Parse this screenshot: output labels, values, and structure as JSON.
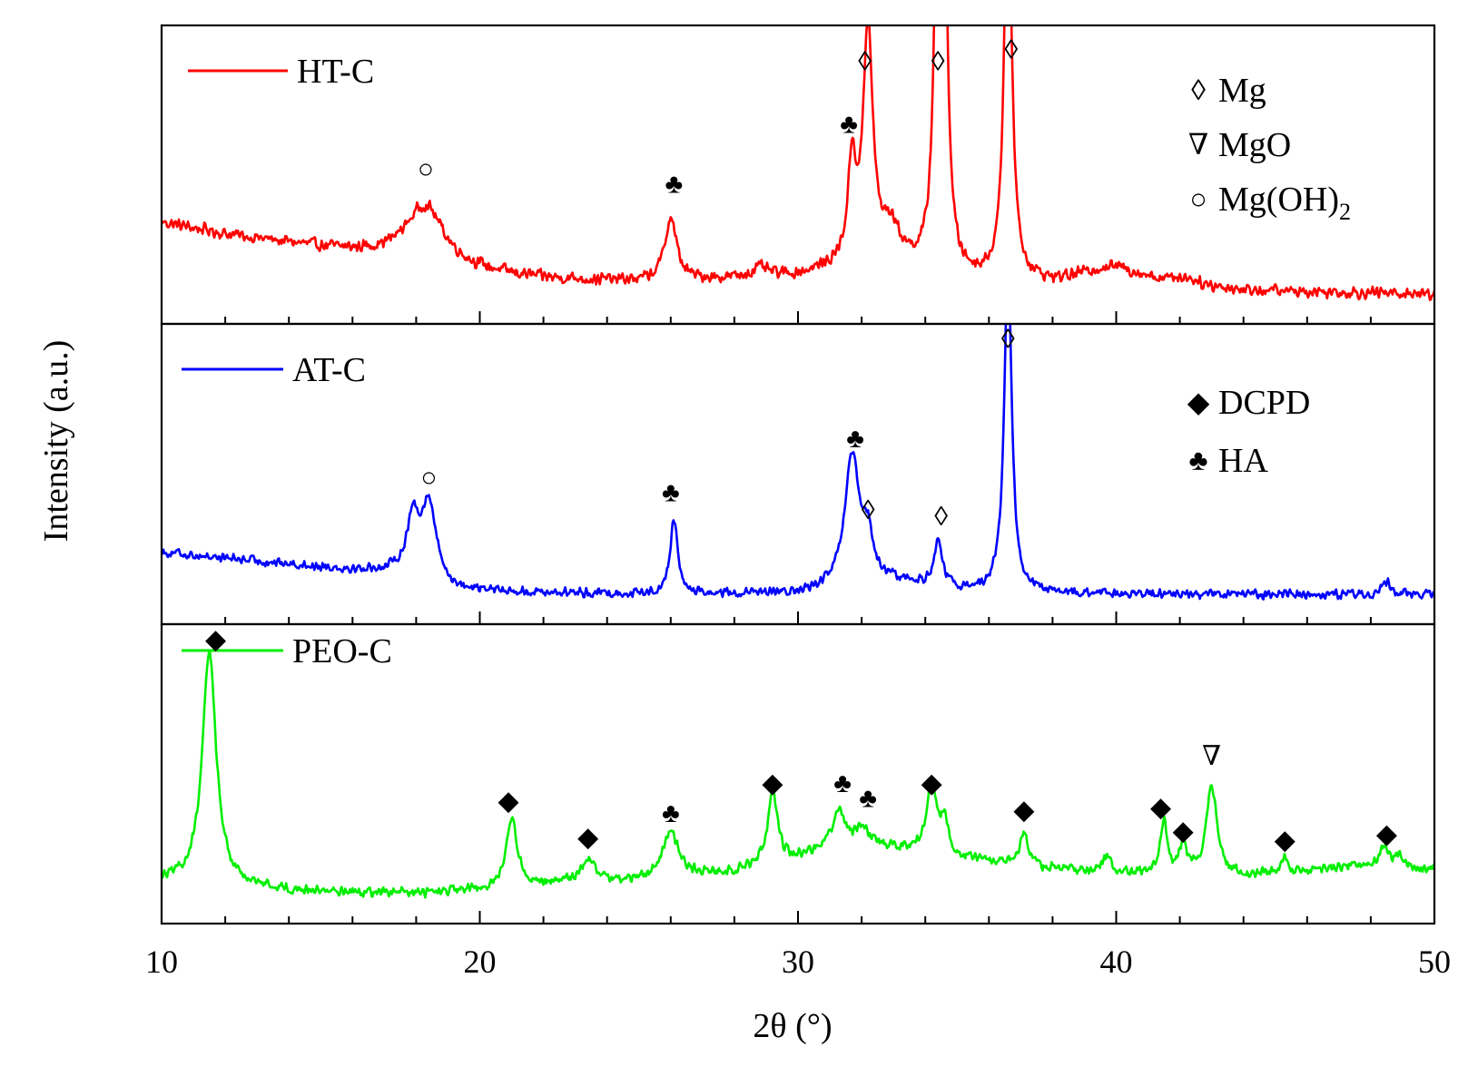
{
  "chart_data": {
    "type": "line",
    "xlabel": "2θ (°)",
    "ylabel": "Intensity (a.u.)",
    "xlim": [
      10,
      50
    ],
    "x_ticks": [
      10,
      20,
      30,
      40,
      50
    ],
    "x_tick_labels": [
      "10",
      "20",
      "30",
      "40",
      "50"
    ],
    "grid": false,
    "phases": [
      {
        "key": "mg",
        "symbol": "◊",
        "name": "Mg"
      },
      {
        "key": "mgo",
        "symbol": "∇",
        "name": "MgO"
      },
      {
        "key": "mgoh2",
        "symbol": "○",
        "name": "Mg(OH)",
        "subscript": "2"
      },
      {
        "key": "dcpd",
        "symbol": "◆",
        "name": "DCPD"
      },
      {
        "key": "ha",
        "symbol": "♣",
        "name": "HA"
      }
    ],
    "panels": [
      {
        "name": "HT-C",
        "color": "#ff0000",
        "ylim": [
          0,
          100
        ],
        "baseline": [
          [
            10,
            34
          ],
          [
            12,
            30
          ],
          [
            14,
            27
          ],
          [
            16,
            24
          ],
          [
            17.5,
            22
          ],
          [
            19,
            18
          ],
          [
            22,
            15
          ],
          [
            25,
            14
          ],
          [
            28,
            15
          ],
          [
            30,
            16
          ],
          [
            31,
            18
          ],
          [
            33,
            22
          ],
          [
            34,
            17
          ],
          [
            35,
            15
          ],
          [
            36,
            14
          ],
          [
            38,
            13
          ],
          [
            40,
            15
          ],
          [
            44,
            11
          ],
          [
            50,
            10
          ]
        ],
        "noise": 2.4,
        "peaks": [
          {
            "x": 18.3,
            "h": 20,
            "w": 0.75
          },
          {
            "x": 26.0,
            "h": 21,
            "w": 0.22
          },
          {
            "x": 28.8,
            "h": 3,
            "w": 0.3
          },
          {
            "x": 31.7,
            "h": 33,
            "w": 0.15
          },
          {
            "x": 32.2,
            "h": 78,
            "w": 0.18
          },
          {
            "x": 32.9,
            "h": 9,
            "w": 0.3
          },
          {
            "x": 34.4,
            "h": 135,
            "w": 0.13
          },
          {
            "x": 34.6,
            "h": 105,
            "w": 0.12
          },
          {
            "x": 36.6,
            "h": 140,
            "w": 0.14
          },
          {
            "x": 39.8,
            "h": 4,
            "w": 1.2
          },
          {
            "x": 42.2,
            "h": 2,
            "w": 0.4
          }
        ],
        "markers": [
          {
            "x": 18.3,
            "y": 52,
            "phase": "mgoh2"
          },
          {
            "x": 26.1,
            "y": 47,
            "phase": "ha"
          },
          {
            "x": 31.6,
            "y": 67,
            "phase": "ha"
          },
          {
            "x": 32.1,
            "y": 88,
            "phase": "mg"
          },
          {
            "x": 34.4,
            "y": 88,
            "phase": "mg"
          },
          {
            "x": 36.7,
            "y": 92,
            "phase": "mg"
          }
        ],
        "legend_keys": [
          "mg",
          "mgo",
          "mgoh2"
        ]
      },
      {
        "name": "AT-C",
        "color": "#0000ff",
        "ylim": [
          0,
          100
        ],
        "baseline": [
          [
            10,
            24
          ],
          [
            13,
            21
          ],
          [
            16,
            18
          ],
          [
            17.5,
            17
          ],
          [
            19,
            11
          ],
          [
            25,
            10
          ],
          [
            30,
            10
          ],
          [
            33,
            14
          ],
          [
            35,
            11
          ],
          [
            36,
            11
          ],
          [
            38,
            10
          ],
          [
            50,
            10
          ]
        ],
        "noise": 1.8,
        "peaks": [
          {
            "x": 17.9,
            "h": 18,
            "w": 0.22
          },
          {
            "x": 18.4,
            "h": 26,
            "w": 0.3
          },
          {
            "x": 26.1,
            "h": 25,
            "w": 0.14
          },
          {
            "x": 31.7,
            "h": 43,
            "w": 0.28
          },
          {
            "x": 32.2,
            "h": 14,
            "w": 0.18
          },
          {
            "x": 34.4,
            "h": 15,
            "w": 0.16
          },
          {
            "x": 36.6,
            "h": 110,
            "w": 0.14
          },
          {
            "x": 48.5,
            "h": 4,
            "w": 0.15
          }
        ],
        "markers": [
          {
            "x": 18.4,
            "y": 49,
            "phase": "mgoh2"
          },
          {
            "x": 26.0,
            "y": 44,
            "phase": "ha"
          },
          {
            "x": 31.8,
            "y": 62,
            "phase": "ha"
          },
          {
            "x": 32.2,
            "y": 38,
            "phase": "mg"
          },
          {
            "x": 34.5,
            "y": 36,
            "phase": "mg"
          },
          {
            "x": 36.6,
            "y": 95,
            "phase": "mg"
          }
        ],
        "legend_keys": [
          "dcpd",
          "ha"
        ]
      },
      {
        "name": "PEO-C",
        "color": "#00ee00",
        "ylim": [
          0,
          100
        ],
        "baseline": [
          [
            10,
            14
          ],
          [
            14,
            11
          ],
          [
            18,
            10
          ],
          [
            20,
            11
          ],
          [
            22,
            13
          ],
          [
            25,
            14
          ],
          [
            28,
            17
          ],
          [
            30,
            22
          ],
          [
            31,
            26
          ],
          [
            33,
            25
          ],
          [
            35,
            22
          ],
          [
            37,
            19
          ],
          [
            40,
            17
          ],
          [
            42,
            16
          ],
          [
            44,
            16
          ],
          [
            46,
            17
          ],
          [
            48,
            20
          ],
          [
            50,
            18
          ]
        ],
        "noise": 1.9,
        "peaks": [
          {
            "x": 11.5,
            "h": 78,
            "w": 0.26
          },
          {
            "x": 21.0,
            "h": 24,
            "w": 0.2
          },
          {
            "x": 23.4,
            "h": 8,
            "w": 0.28
          },
          {
            "x": 26.0,
            "h": 16,
            "w": 0.3
          },
          {
            "x": 29.2,
            "h": 25,
            "w": 0.18
          },
          {
            "x": 31.3,
            "h": 12,
            "w": 0.18
          },
          {
            "x": 32.0,
            "h": 6,
            "w": 0.3
          },
          {
            "x": 34.2,
            "h": 22,
            "w": 0.2
          },
          {
            "x": 34.6,
            "h": 10,
            "w": 0.15
          },
          {
            "x": 37.1,
            "h": 11,
            "w": 0.15
          },
          {
            "x": 39.7,
            "h": 4,
            "w": 0.2
          },
          {
            "x": 41.5,
            "h": 17,
            "w": 0.14
          },
          {
            "x": 42.1,
            "h": 10,
            "w": 0.12
          },
          {
            "x": 43.0,
            "h": 30,
            "w": 0.2
          },
          {
            "x": 45.3,
            "h": 5,
            "w": 0.14
          },
          {
            "x": 48.4,
            "h": 6,
            "w": 0.15
          },
          {
            "x": 48.9,
            "h": 5,
            "w": 0.12
          }
        ],
        "markers": [
          {
            "x": 11.7,
            "y": 95,
            "phase": "dcpd"
          },
          {
            "x": 20.9,
            "y": 41,
            "phase": "dcpd"
          },
          {
            "x": 23.4,
            "y": 29,
            "phase": "dcpd"
          },
          {
            "x": 26.0,
            "y": 37,
            "phase": "ha"
          },
          {
            "x": 29.2,
            "y": 47,
            "phase": "dcpd"
          },
          {
            "x": 31.4,
            "y": 47,
            "phase": "ha"
          },
          {
            "x": 32.2,
            "y": 42,
            "phase": "ha"
          },
          {
            "x": 34.2,
            "y": 47,
            "phase": "dcpd"
          },
          {
            "x": 37.1,
            "y": 38,
            "phase": "dcpd"
          },
          {
            "x": 41.4,
            "y": 39,
            "phase": "dcpd"
          },
          {
            "x": 42.1,
            "y": 31,
            "phase": "dcpd"
          },
          {
            "x": 43.0,
            "y": 56,
            "phase": "mgo"
          },
          {
            "x": 45.3,
            "y": 28,
            "phase": "dcpd"
          },
          {
            "x": 48.5,
            "y": 30,
            "phase": "dcpd"
          }
        ],
        "legend_keys": []
      }
    ]
  }
}
